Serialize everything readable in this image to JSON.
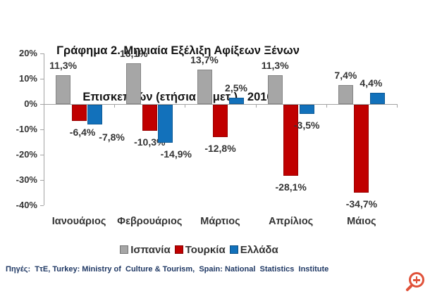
{
  "title": {
    "line1": "Γράφημα 2. Μηνιαία Εξέλιξη Αφίξεων Ξένων",
    "line2": "Επισκεπτών (ετήσια % μετ.),  2016"
  },
  "chart_data": {
    "type": "bar",
    "title": "Γράφημα 2. Μηνιαία Εξέλιξη Αφίξεων Ξένων Επισκεπτών (ετήσια % μετ.), 2016",
    "categories": [
      "Ιανουάριος",
      "Φεβρουάριος",
      "Μάρτιος",
      "Απρίλιος",
      "Μάιος"
    ],
    "series": [
      {
        "name": "Ισπανία",
        "color": "#A6A6A6",
        "values": [
          11.3,
          16.1,
          13.7,
          11.3,
          7.4
        ]
      },
      {
        "name": "Τουρκία",
        "color": "#C00000",
        "values": [
          -6.4,
          -10.3,
          -12.8,
          -28.1,
          -34.7
        ]
      },
      {
        "name": "Ελλάδα",
        "color": "#1271BB",
        "values": [
          -7.8,
          -14.9,
          2.5,
          -3.5,
          4.4
        ]
      }
    ],
    "ylabel": "",
    "xlabel": "",
    "ylim": [
      -40,
      20
    ],
    "ytick_step": 10,
    "ytick_labels": [
      "20%",
      "10%",
      "0%",
      "-10%",
      "-20%",
      "-30%",
      "-40%"
    ],
    "grid": "off",
    "legend_position": "bottom",
    "data_labels": "on",
    "data_label_decimal_separator": ",",
    "data_label_suffix": "%",
    "axis_color": "#A3A3A3"
  },
  "footnote": "Πηγές:  ΤτΕ, Turkey: Ministry of  Culture & Tourism,  Spain: National  Statistics  Institute",
  "icons": {
    "zoom_in_name": "zoom-in-icon",
    "zoom_in_color": "#E0523A"
  }
}
